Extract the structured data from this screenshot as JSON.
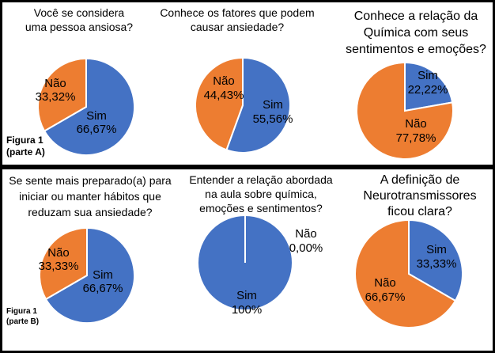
{
  "colors": {
    "sim": "#4472C4",
    "nao": "#ED7D31"
  },
  "figure_labels": [
    {
      "line1": "Figura 1",
      "line2": "(parte A)"
    },
    {
      "line1": "Figura 1",
      "line2": "(parte B)"
    }
  ],
  "chart_data": [
    {
      "type": "pie",
      "title": [
        "Você se considera",
        "uma pessoa ansiosa?"
      ],
      "slices": [
        {
          "label": "Sim",
          "value": 66.67,
          "value_label": "66,67%",
          "color": "#4472C4"
        },
        {
          "label": "Não",
          "value": 33.32,
          "value_label": "33,32%",
          "color": "#ED7D31"
        }
      ]
    },
    {
      "type": "pie",
      "title": [
        "Conhece os fatores que podem",
        "causar ansiedade?"
      ],
      "slices": [
        {
          "label": "Sim",
          "value": 55.56,
          "value_label": "55,56%",
          "color": "#4472C4"
        },
        {
          "label": "Não",
          "value": 44.43,
          "value_label": "44,43%",
          "color": "#ED7D31"
        }
      ]
    },
    {
      "type": "pie",
      "title": [
        "Conhece a relação da",
        "Química com seus",
        "sentimentos e emoções?"
      ],
      "slices": [
        {
          "label": "Sim",
          "value": 22.22,
          "value_label": "22,22%",
          "color": "#4472C4"
        },
        {
          "label": "Não",
          "value": 77.78,
          "value_label": "77,78%",
          "color": "#ED7D31"
        }
      ]
    },
    {
      "type": "pie",
      "title": [
        "Se sente mais preparado(a) para",
        "iniciar ou manter hábitos que",
        "reduzam sua ansiedade?"
      ],
      "slices": [
        {
          "label": "Sim",
          "value": 66.67,
          "value_label": "66,67%",
          "color": "#4472C4"
        },
        {
          "label": "Não",
          "value": 33.33,
          "value_label": "33,33%",
          "color": "#ED7D31"
        }
      ]
    },
    {
      "type": "pie",
      "title": [
        "Entender a relação abordada",
        "na aula sobre química,",
        "emoções e sentimentos?"
      ],
      "slices": [
        {
          "label": "Sim",
          "value": 100,
          "value_label": "100%",
          "color": "#4472C4"
        },
        {
          "label": "Não",
          "value": 0,
          "value_label": "0,00%",
          "color": "#ED7D31"
        }
      ]
    },
    {
      "type": "pie",
      "title": [
        "A  definição de",
        "Neurotransmissores",
        "ficou clara?"
      ],
      "slices": [
        {
          "label": "Sim",
          "value": 33.33,
          "value_label": "33,33%",
          "color": "#4472C4"
        },
        {
          "label": "Não",
          "value": 66.67,
          "value_label": "66,67%",
          "color": "#ED7D31"
        }
      ]
    }
  ]
}
